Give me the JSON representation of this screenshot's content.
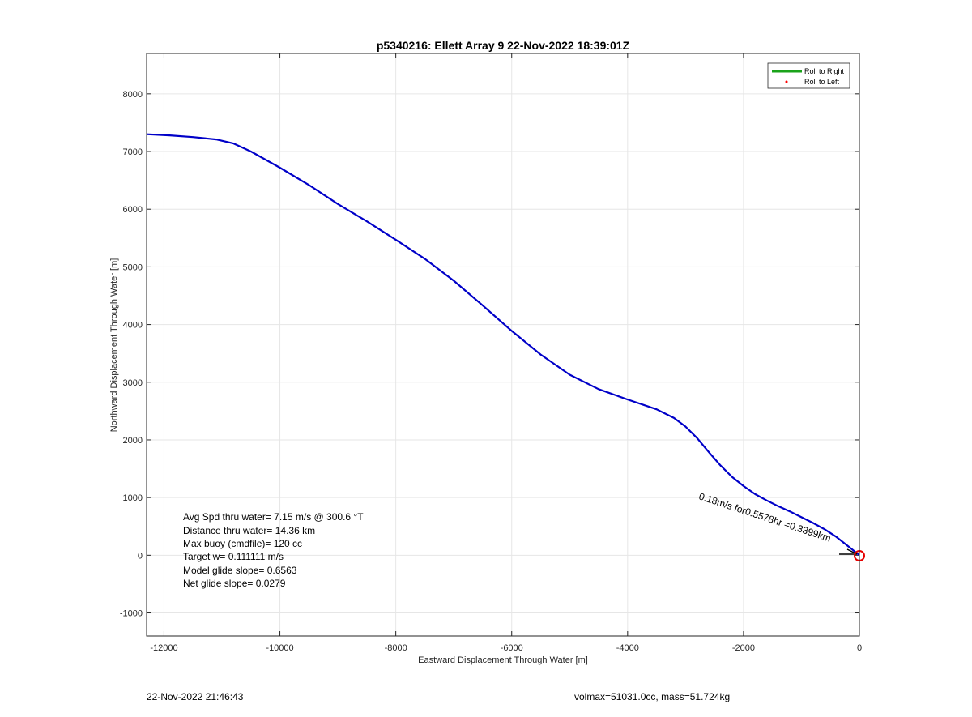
{
  "chart_data": {
    "type": "line",
    "title": "p5340216: Ellett Array 9 22-Nov-2022 18:39:01Z",
    "xlabel": "Eastward Displacement Through Water [m]",
    "ylabel": "Northward Displacement Through Water [m]",
    "xlim": [
      -12300,
      0
    ],
    "ylim": [
      -1400,
      8700
    ],
    "xticks": [
      -12000,
      -10000,
      -8000,
      -6000,
      -4000,
      -2000,
      0
    ],
    "yticks": [
      -1000,
      0,
      1000,
      2000,
      3000,
      4000,
      5000,
      6000,
      7000,
      8000
    ],
    "grid": true,
    "legend": {
      "placement": "top-right",
      "entries": [
        {
          "label": "Roll to Right",
          "color": "#1aa31a",
          "marker": "line"
        },
        {
          "label": "Roll to Left",
          "color": "#ff0000",
          "marker": "dot"
        }
      ]
    },
    "series": [
      {
        "color": "#0000c8",
        "x": [
          -12300,
          -11900,
          -11500,
          -11100,
          -10800,
          -10500,
          -10000,
          -9500,
          -9000,
          -8500,
          -8000,
          -7500,
          -7000,
          -6500,
          -6000,
          -5500,
          -5000,
          -4500,
          -4000,
          -3500,
          -3200,
          -3000,
          -2800,
          -2600,
          -2400,
          -2200,
          -2000,
          -1800,
          -1600,
          -1400,
          -1200,
          -1000,
          -800,
          -600,
          -400,
          -200,
          0
        ],
        "y": [
          7300,
          7280,
          7250,
          7210,
          7140,
          7000,
          6720,
          6420,
          6090,
          5790,
          5470,
          5140,
          4760,
          4330,
          3890,
          3480,
          3130,
          2880,
          2700,
          2530,
          2380,
          2230,
          2030,
          1790,
          1560,
          1360,
          1200,
          1060,
          950,
          850,
          760,
          660,
          560,
          450,
          320,
          160,
          0
        ]
      }
    ],
    "annotations": [
      {
        "text": "Avg Spd thru water=  7.15 m/s @ 300.6 °T"
      },
      {
        "text": "Distance thru water= 14.36 km"
      },
      {
        "text": "Max buoy (cmdfile)= 120 cc"
      },
      {
        "text": "Target w= 0.111111 m/s"
      },
      {
        "text": "Model glide slope= 0.6563"
      },
      {
        "text": "Net glide slope= 0.0279"
      }
    ],
    "current_label": "0.18m/s for0.5578hr =0.3399km"
  },
  "footer": {
    "timestamp": "22-Nov-2022 21:46:43",
    "mass_info": "volmax=51031.0cc, mass=51.724kg"
  }
}
